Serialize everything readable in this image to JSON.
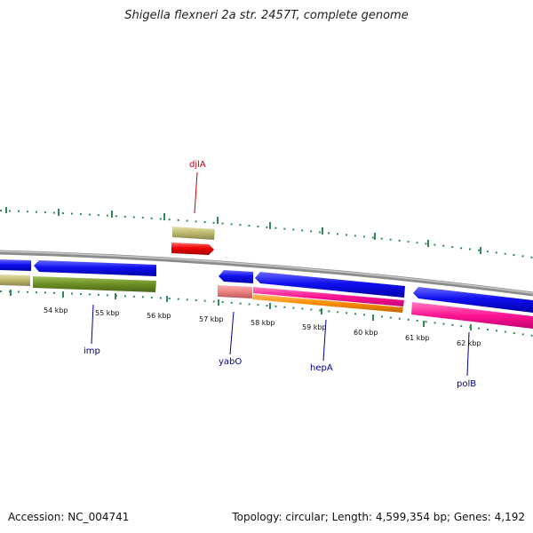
{
  "title": "Shigella flexneri 2a str. 2457T, complete genome",
  "footer": {
    "accession": "Accession: NC_004741",
    "stats": "Topology: circular; Length: 4,599,354 bp; Genes: 4,192"
  },
  "scale_labels": [
    "54 kbp",
    "55 kbp",
    "56 kbp",
    "57 kbp",
    "58 kbp",
    "59 kbp",
    "60 kbp",
    "61 kbp",
    "62 kbp"
  ],
  "gene_labels": [
    {
      "name": "djlA",
      "color": "#cc0000"
    },
    {
      "name": "imp",
      "color": "#00008b"
    },
    {
      "name": "yabO",
      "color": "#00008b"
    },
    {
      "name": "hepA",
      "color": "#00008b"
    },
    {
      "name": "polB",
      "color": "#00008b"
    }
  ],
  "colors": {
    "backbone": "#8c8c8c",
    "gene_blue": "#0000ee",
    "gene_red": "#ee0000",
    "khaki": "#bdb76b",
    "olive": "#6b8e23",
    "salmon": "#f08080",
    "pink": "#ff1493",
    "orange": "#ff8c00",
    "tick_green": "#2e8b57"
  }
}
